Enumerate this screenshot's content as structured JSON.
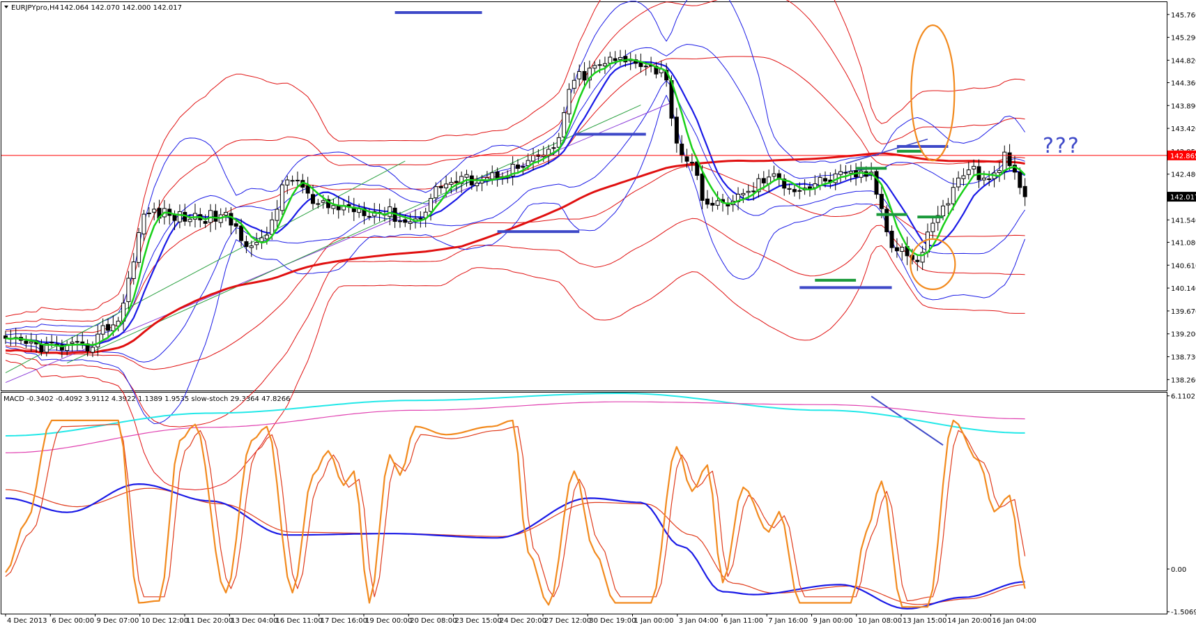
{
  "main_header": {
    "symbol": "EURJPYpro,H4",
    "ohlc": "142.064 142.070 142.000 142.017"
  },
  "macd_header": {
    "text": "MACD -0.3402 -0.4092 3.9112 4.3922 1.1389 1.9535  slow-stoch 29.3364 47.8266"
  },
  "annotation_text": "???",
  "colors": {
    "background": "#ffffff",
    "bull_candle": "#ffffff",
    "bear_candle": "#000000",
    "bollinger_blue": "#1a1ae6",
    "bollinger_red": "#e01010",
    "ma_green": "#18d018",
    "ma_blue": "#1a1ae6",
    "ma_red_thick": "#e01010",
    "hline_red": "#ff0000",
    "annotation_blue": "#3e49c8",
    "annotation_green": "#1a9a3a",
    "annotation_orange": "#f28a1e",
    "stoch_orange": "#f28a1e",
    "stoch_red": "#e03a1a",
    "macd_cyan": "#22e8e8",
    "macd_magenta": "#e040b0",
    "price_tag_red": "#ff0000",
    "price_tag_black": "#000000"
  },
  "chart_data": [
    {
      "type": "candlestick",
      "title": "EURJPYpro,H4",
      "ylim": [
        138.05,
        146.0
      ],
      "y_ticks": [
        "145.760",
        "145.290",
        "144.820",
        "144.360",
        "143.890",
        "143.420",
        "142.950",
        "142.480",
        "142.017",
        "141.540",
        "141.080",
        "140.610",
        "140.140",
        "139.670",
        "139.200",
        "138.730",
        "138.260"
      ],
      "price_tags": [
        {
          "value": 142.865,
          "label": "142.865",
          "color": "#ff0000"
        },
        {
          "value": 142.017,
          "label": "142.017",
          "color": "#000000"
        }
      ],
      "x_ticks": [
        "4 Dec 2013",
        "6 Dec 00:00",
        "9 Dec 07:00",
        "10 Dec 12:00",
        "11 Dec 20:00",
        "13 Dec 04:00",
        "16 Dec 11:00",
        "17 Dec 16:00",
        "19 Dec 00:00",
        "20 Dec 08:00",
        "23 Dec 15:00",
        "24 Dec 20:00",
        "27 Dec 12:00",
        "30 Dec 19:00",
        "1 Jan 00:00",
        "3 Jan 04:00",
        "6 Jan 11:00",
        "7 Jan 16:00",
        "9 Jan 00:00",
        "10 Jan 08:00",
        "13 Jan 15:00",
        "14 Jan 20:00",
        "16 Jan 04:00"
      ],
      "close_anchors": [
        [
          0,
          139.0
        ],
        [
          15,
          138.9
        ],
        [
          21,
          139.4
        ],
        [
          28,
          141.7
        ],
        [
          35,
          141.6
        ],
        [
          42,
          141.6
        ],
        [
          49,
          141.0
        ],
        [
          56,
          142.4
        ],
        [
          61,
          141.8
        ],
        [
          67,
          141.8
        ],
        [
          74,
          141.7
        ],
        [
          79,
          141.5
        ],
        [
          86,
          142.3
        ],
        [
          93,
          142.4
        ],
        [
          100,
          142.6
        ],
        [
          106,
          142.9
        ],
        [
          112,
          144.5
        ],
        [
          118,
          144.8
        ],
        [
          124,
          144.8
        ],
        [
          128,
          144.6
        ],
        [
          132,
          142.9
        ],
        [
          138,
          141.8
        ],
        [
          143,
          142.0
        ],
        [
          149,
          142.4
        ],
        [
          155,
          142.2
        ],
        [
          162,
          142.4
        ],
        [
          168,
          142.5
        ],
        [
          174,
          141.0
        ],
        [
          178,
          140.7
        ],
        [
          182,
          141.7
        ],
        [
          188,
          142.6
        ],
        [
          192,
          142.3
        ],
        [
          195,
          142.8
        ],
        [
          199,
          142.017
        ]
      ],
      "horizontal_lines": [
        {
          "value": 142.865,
          "color": "#ff0000"
        }
      ],
      "annotations": [
        {
          "type": "resistance",
          "value": 145.8,
          "color": "#3e49c8"
        },
        {
          "type": "resistance",
          "value": 143.3,
          "color": "#3e49c8"
        },
        {
          "type": "support",
          "value": 141.3,
          "color": "#3e49c8"
        },
        {
          "type": "support",
          "value": 140.15,
          "color": "#3e49c8"
        },
        {
          "type": "level",
          "value": 142.6,
          "color": "#1a9a3a"
        },
        {
          "type": "level",
          "value": 142.95,
          "color": "#1a9a3a"
        },
        {
          "type": "level",
          "value": 141.65,
          "color": "#1a9a3a"
        },
        {
          "type": "level",
          "value": 141.6,
          "color": "#1a9a3a"
        },
        {
          "type": "level",
          "value": 140.3,
          "color": "#1a9a3a"
        }
      ]
    },
    {
      "type": "line",
      "title": "MACD -0.3402 -0.4092 3.9112 4.3922 1.1389 1.9535  slow-stoch 29.3364 47.8266",
      "ylim": [
        -1.55,
        6.2
      ],
      "y_ticks": [
        "6.1102",
        "0.00",
        "-1.5069"
      ],
      "stoch_k_anchors": [
        [
          0,
          20
        ],
        [
          4,
          45
        ],
        [
          9,
          95
        ],
        [
          22,
          95
        ],
        [
          26,
          5
        ],
        [
          30,
          6
        ],
        [
          34,
          85
        ],
        [
          37,
          93
        ],
        [
          43,
          10
        ],
        [
          48,
          85
        ],
        [
          51,
          92
        ],
        [
          56,
          10
        ],
        [
          60,
          68
        ],
        [
          63,
          80
        ],
        [
          66,
          63
        ],
        [
          68,
          70
        ],
        [
          71,
          5
        ],
        [
          75,
          78
        ],
        [
          77,
          68
        ],
        [
          80,
          92
        ],
        [
          86,
          88
        ],
        [
          95,
          92
        ],
        [
          99,
          95
        ],
        [
          102,
          30
        ],
        [
          106,
          4
        ],
        [
          111,
          70
        ],
        [
          115,
          30
        ],
        [
          119,
          5
        ],
        [
          126,
          5
        ],
        [
          131,
          82
        ],
        [
          134,
          60
        ],
        [
          137,
          73
        ],
        [
          140,
          15
        ],
        [
          144,
          62
        ],
        [
          149,
          40
        ],
        [
          151,
          50
        ],
        [
          155,
          5
        ],
        [
          165,
          5
        ],
        [
          168,
          40
        ],
        [
          171,
          65
        ],
        [
          175,
          3
        ],
        [
          180,
          3
        ],
        [
          185,
          95
        ],
        [
          190,
          75
        ],
        [
          193,
          50
        ],
        [
          196,
          58
        ],
        [
          199,
          12
        ]
      ],
      "stoch_d_anchors": [
        [
          0,
          18
        ],
        [
          5,
          40
        ],
        [
          11,
          92
        ],
        [
          22,
          93
        ],
        [
          27,
          8
        ],
        [
          31,
          8
        ],
        [
          35,
          80
        ],
        [
          38,
          90
        ],
        [
          44,
          12
        ],
        [
          49,
          80
        ],
        [
          52,
          88
        ],
        [
          57,
          12
        ],
        [
          61,
          64
        ],
        [
          64,
          78
        ],
        [
          67,
          62
        ],
        [
          69,
          66
        ],
        [
          72,
          8
        ],
        [
          76,
          74
        ],
        [
          78,
          70
        ],
        [
          81,
          88
        ],
        [
          87,
          86
        ],
        [
          96,
          90
        ],
        [
          100,
          92
        ],
        [
          103,
          32
        ],
        [
          107,
          8
        ],
        [
          112,
          66
        ],
        [
          116,
          34
        ],
        [
          120,
          8
        ],
        [
          127,
          8
        ],
        [
          132,
          78
        ],
        [
          135,
          62
        ],
        [
          138,
          70
        ],
        [
          141,
          18
        ],
        [
          145,
          58
        ],
        [
          150,
          42
        ],
        [
          152,
          48
        ],
        [
          156,
          8
        ],
        [
          166,
          8
        ],
        [
          169,
          38
        ],
        [
          172,
          60
        ],
        [
          176,
          6
        ],
        [
          181,
          8
        ],
        [
          186,
          90
        ],
        [
          191,
          74
        ],
        [
          194,
          52
        ],
        [
          197,
          56
        ],
        [
          199,
          28
        ]
      ],
      "macd_blue_anchors": [
        [
          0,
          2.5
        ],
        [
          12,
          2.0
        ],
        [
          26,
          3.0
        ],
        [
          40,
          2.4
        ],
        [
          55,
          1.2
        ],
        [
          75,
          1.25
        ],
        [
          96,
          1.1
        ],
        [
          114,
          2.5
        ],
        [
          124,
          2.35
        ],
        [
          132,
          0.8
        ],
        [
          140,
          -0.8
        ],
        [
          146,
          -0.9
        ],
        [
          163,
          -0.55
        ],
        [
          176,
          -1.4
        ],
        [
          187,
          -1.0
        ],
        [
          199,
          -0.45
        ]
      ],
      "macd_signal_anchors": [
        [
          0,
          2.8
        ],
        [
          14,
          2.2
        ],
        [
          28,
          2.85
        ],
        [
          42,
          2.3
        ],
        [
          56,
          1.3
        ],
        [
          76,
          1.25
        ],
        [
          97,
          1.15
        ],
        [
          115,
          2.35
        ],
        [
          125,
          2.3
        ],
        [
          134,
          1.2
        ],
        [
          142,
          -0.5
        ],
        [
          150,
          -0.85
        ],
        [
          165,
          -0.6
        ],
        [
          178,
          -1.25
        ],
        [
          188,
          -1.05
        ],
        [
          199,
          -0.55
        ]
      ],
      "cyan_anchors": [
        [
          0,
          4.7
        ],
        [
          40,
          5.5
        ],
        [
          80,
          5.95
        ],
        [
          120,
          6.2
        ],
        [
          160,
          5.6
        ],
        [
          199,
          4.8
        ]
      ],
      "magenta_anchors": [
        [
          0,
          4.1
        ],
        [
          40,
          5.0
        ],
        [
          80,
          5.6
        ],
        [
          120,
          5.9
        ],
        [
          160,
          5.8
        ],
        [
          199,
          5.3
        ]
      ]
    }
  ]
}
